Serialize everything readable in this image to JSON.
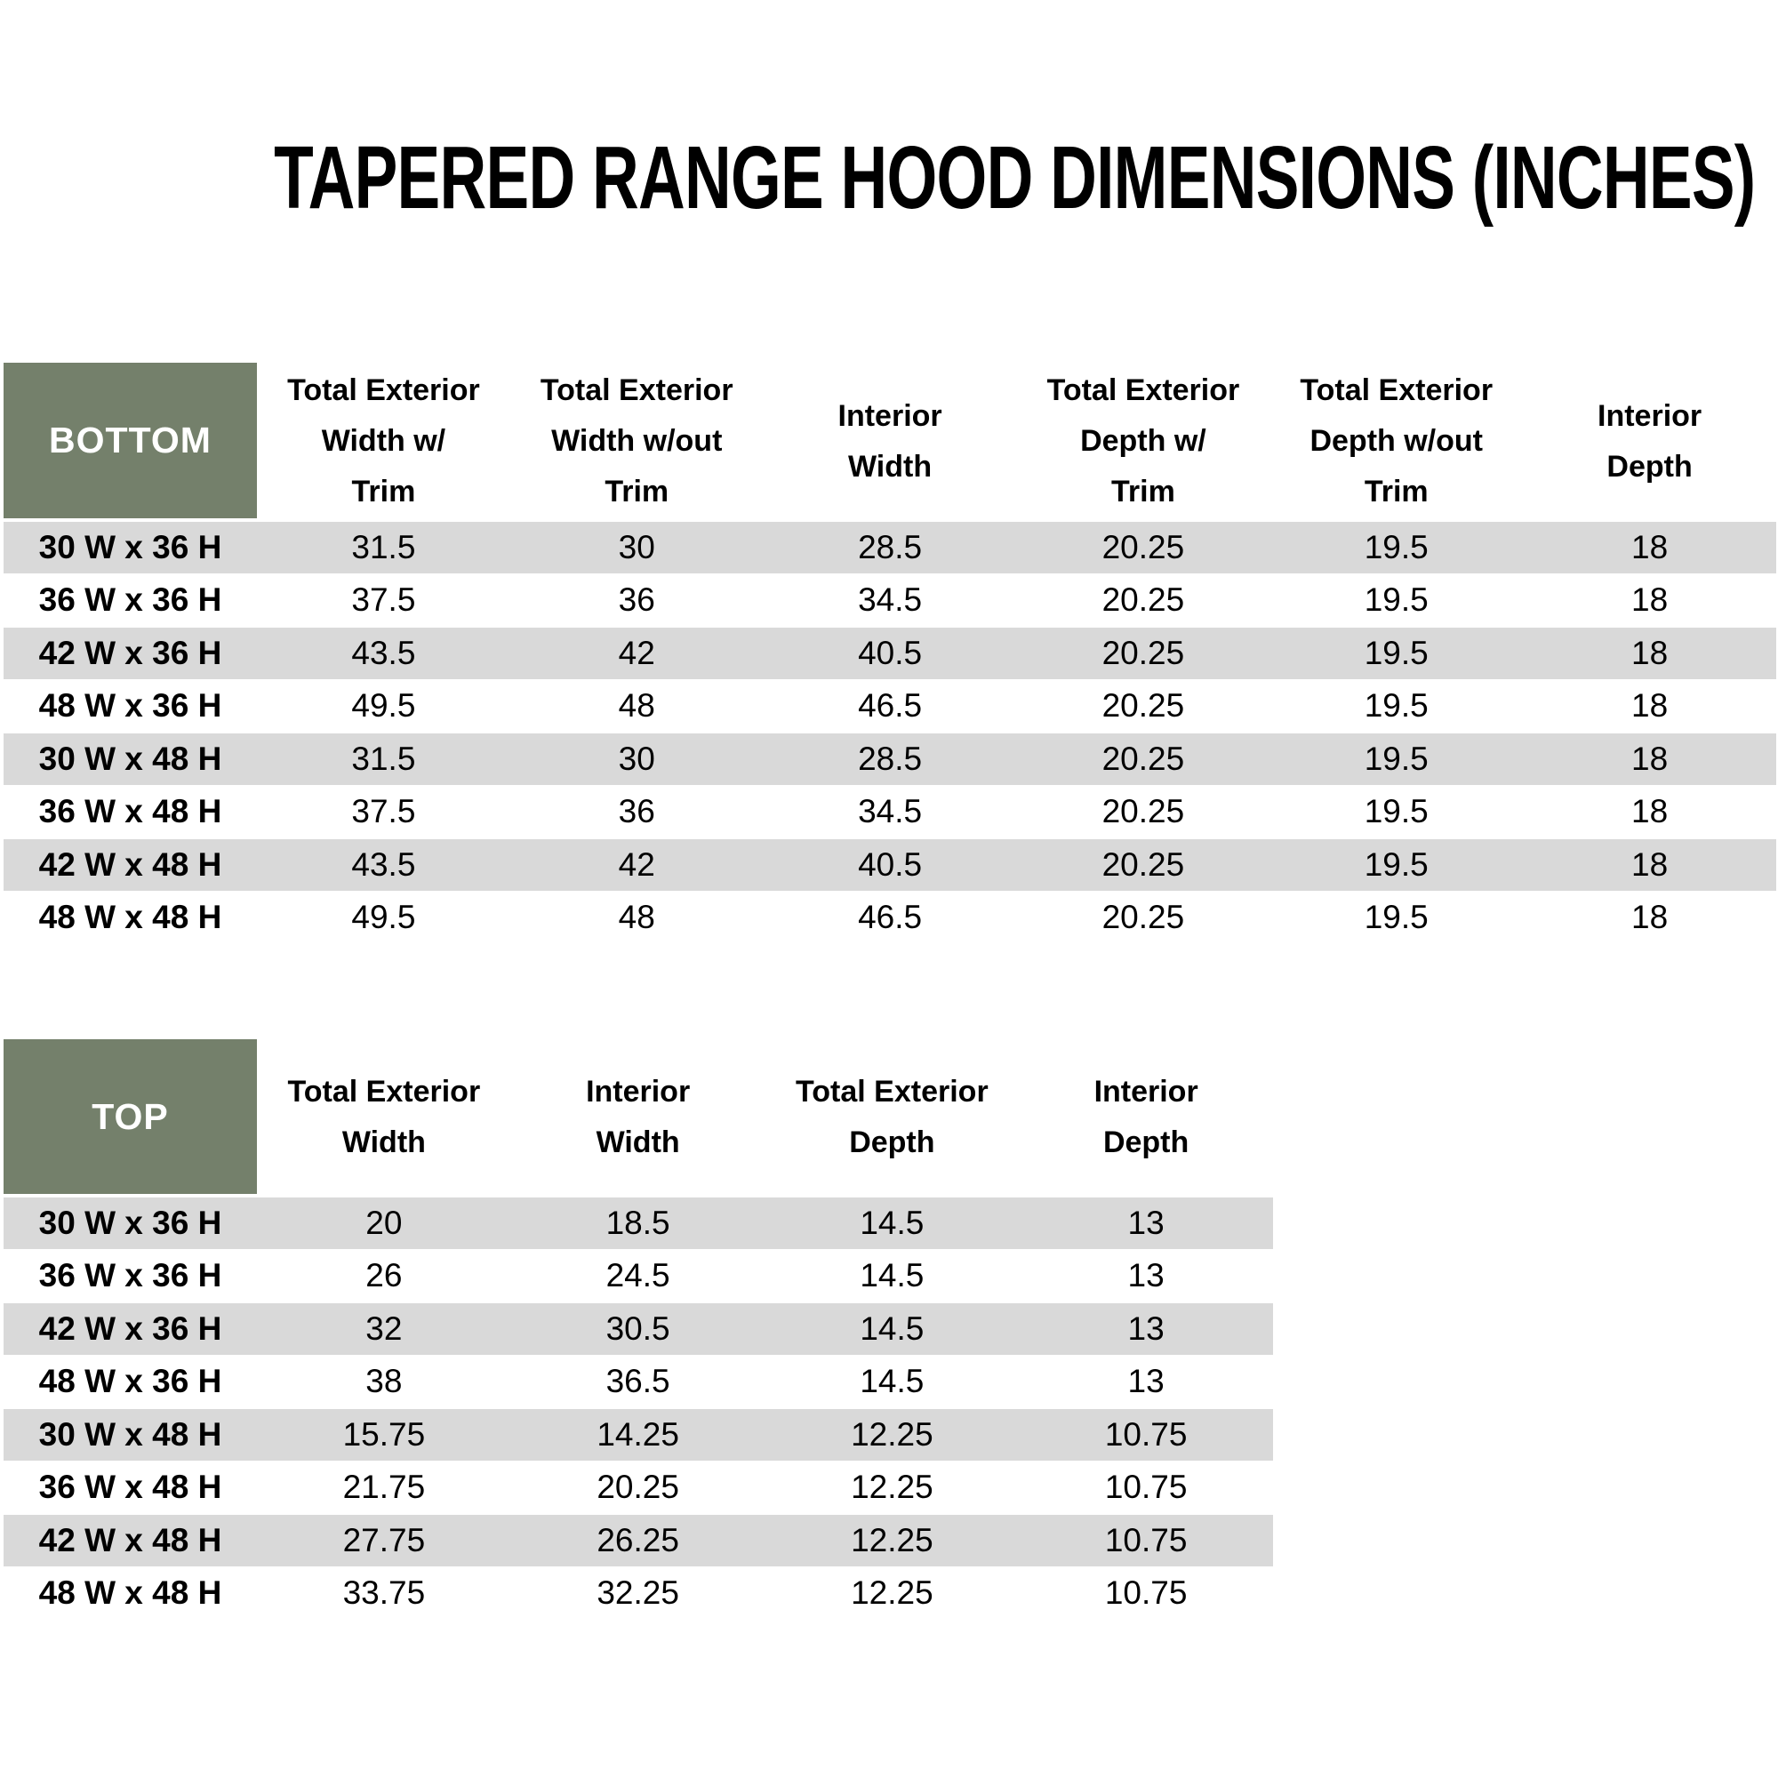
{
  "title": "TAPERED RANGE HOOD DIMENSIONS (INCHES)",
  "colors": {
    "header_green": "#74806B",
    "row_gray": "#D9D9D9",
    "row_white": "#FFFFFF",
    "corner_text": "#FFFFFF",
    "body_text": "#000000"
  },
  "chart_data": [
    {
      "type": "table",
      "title": "BOTTOM",
      "columns": [
        "Total Exterior\nWidth w/\nTrim",
        "Total Exterior\nWidth w/out\nTrim",
        "Interior\nWidth",
        "Total Exterior\nDepth w/\nTrim",
        "Total Exterior\nDepth w/out\nTrim",
        "Interior\nDepth"
      ],
      "row_labels": [
        "30 W x 36 H",
        "36 W x 36 H",
        "42 W x 36 H",
        "48 W x 36 H",
        "30 W x 48 H",
        "36 W x 48 H",
        "42 W x 48 H",
        "48 W x 48 H"
      ],
      "rows": [
        [
          "31.5",
          "30",
          "28.5",
          "20.25",
          "19.5",
          "18"
        ],
        [
          "37.5",
          "36",
          "34.5",
          "20.25",
          "19.5",
          "18"
        ],
        [
          "43.5",
          "42",
          "40.5",
          "20.25",
          "19.5",
          "18"
        ],
        [
          "49.5",
          "48",
          "46.5",
          "20.25",
          "19.5",
          "18"
        ],
        [
          "31.5",
          "30",
          "28.5",
          "20.25",
          "19.5",
          "18"
        ],
        [
          "37.5",
          "36",
          "34.5",
          "20.25",
          "19.5",
          "18"
        ],
        [
          "43.5",
          "42",
          "40.5",
          "20.25",
          "19.5",
          "18"
        ],
        [
          "49.5",
          "48",
          "46.5",
          "20.25",
          "19.5",
          "18"
        ]
      ]
    },
    {
      "type": "table",
      "title": "TOP",
      "columns": [
        "Total Exterior\nWidth",
        "Interior\nWidth",
        "Total Exterior\nDepth",
        "Interior\nDepth"
      ],
      "row_labels": [
        "30 W x 36 H",
        "36 W x 36 H",
        "42 W x 36 H",
        "48 W x 36 H",
        "30 W x 48 H",
        "36 W x 48 H",
        "42 W x 48 H",
        "48 W x 48 H"
      ],
      "rows": [
        [
          "20",
          "18.5",
          "14.5",
          "13"
        ],
        [
          "26",
          "24.5",
          "14.5",
          "13"
        ],
        [
          "32",
          "30.5",
          "14.5",
          "13"
        ],
        [
          "38",
          "36.5",
          "14.5",
          "13"
        ],
        [
          "15.75",
          "14.25",
          "12.25",
          "10.75"
        ],
        [
          "21.75",
          "20.25",
          "12.25",
          "10.75"
        ],
        [
          "27.75",
          "26.25",
          "12.25",
          "10.75"
        ],
        [
          "33.75",
          "32.25",
          "12.25",
          "10.75"
        ]
      ]
    }
  ]
}
